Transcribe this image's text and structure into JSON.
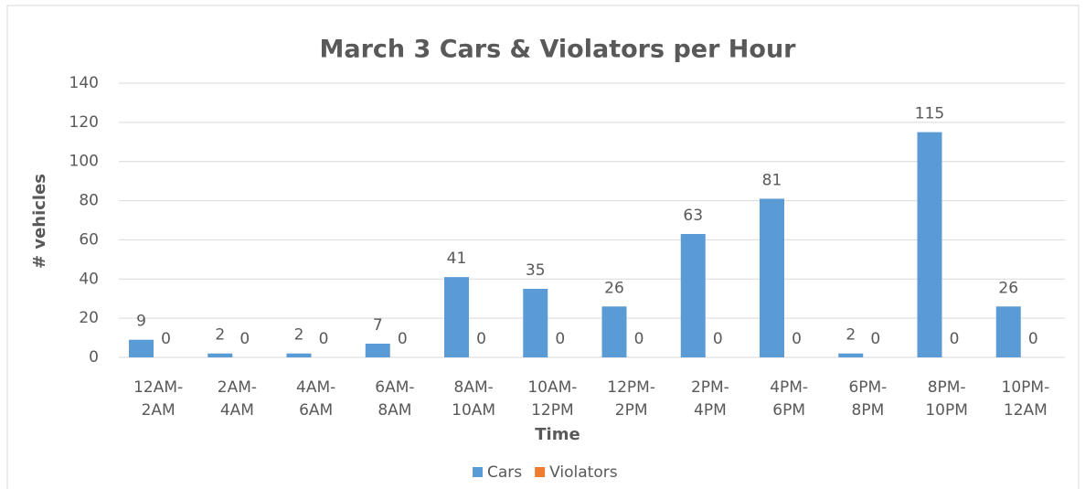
{
  "chart_data": {
    "type": "bar",
    "title": "March 3 Cars & Violators per Hour",
    "x_label": "Time",
    "y_label": "# vehicles",
    "categories": [
      "12AM-2AM",
      "2AM-4AM",
      "4AM-6AM",
      "6AM-8AM",
      "8AM-10AM",
      "10AM-12PM",
      "12PM-2PM",
      "2PM-4PM",
      "4PM-6PM",
      "6PM-8PM",
      "8PM-10PM",
      "10PM-12AM"
    ],
    "series": [
      {
        "name": "Cars",
        "color": "#5b9bd5",
        "values": [
          9,
          2,
          2,
          7,
          41,
          35,
          26,
          63,
          81,
          2,
          115,
          26
        ]
      },
      {
        "name": "Violators",
        "color": "#ed7d31",
        "values": [
          0,
          0,
          0,
          0,
          0,
          0,
          0,
          0,
          0,
          0,
          0,
          0
        ]
      }
    ],
    "ylim": [
      0,
      140
    ],
    "yticks": [
      0,
      20,
      40,
      60,
      80,
      100,
      120,
      140
    ],
    "grid": true,
    "legend": "bottom"
  }
}
